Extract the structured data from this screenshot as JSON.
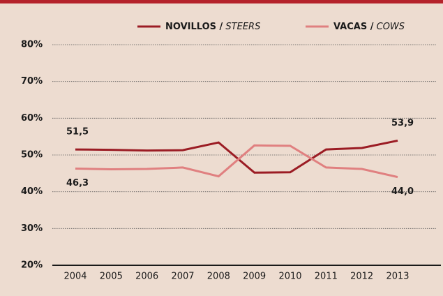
{
  "chart_data": {
    "type": "line",
    "categories": [
      "2004",
      "2005",
      "2006",
      "2007",
      "2008",
      "2009",
      "2010",
      "2011",
      "2012",
      "2013"
    ],
    "series": [
      {
        "name": "NOVILLOS / STEERS",
        "color": "#9b1c24",
        "values": [
          51.5,
          51.4,
          51.2,
          51.3,
          53.4,
          45.2,
          45.3,
          51.5,
          51.9,
          53.9
        ],
        "value_labels": [
          "51,5",
          null,
          null,
          null,
          null,
          null,
          null,
          null,
          null,
          "53,9"
        ]
      },
      {
        "name": "VACAS / COWS",
        "color": "#e08080",
        "values": [
          46.3,
          46.1,
          46.2,
          46.6,
          44.2,
          52.6,
          52.5,
          46.6,
          46.2,
          44.0
        ],
        "value_labels": [
          "46,3",
          null,
          null,
          null,
          null,
          null,
          null,
          null,
          null,
          "44,0"
        ]
      }
    ],
    "ylim": [
      20,
      80
    ],
    "yticks": [
      {
        "value": 20,
        "label": "20%"
      },
      {
        "value": 30,
        "label": "30%"
      },
      {
        "value": 40,
        "label": "40%"
      },
      {
        "value": 50,
        "label": "50%"
      },
      {
        "value": 60,
        "label": "60%"
      },
      {
        "value": 70,
        "label": "70%"
      },
      {
        "value": 80,
        "label": "80%"
      }
    ],
    "grid": true
  }
}
